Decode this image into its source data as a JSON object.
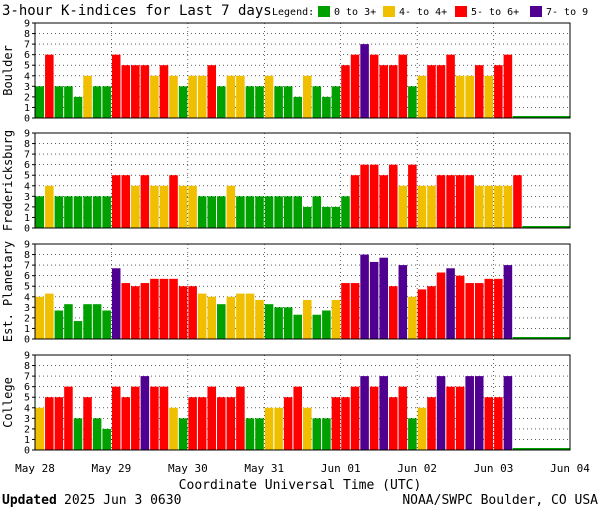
{
  "chart_data": {
    "type": "bar",
    "title": "3-hour K-indices for Last 7 days",
    "legend": {
      "label": "Legend:",
      "entries": [
        {
          "label": "0 to 3+",
          "color": "#00a000"
        },
        {
          "label": "4- to 4+",
          "color": "#f0c000"
        },
        {
          "label": "5- to 6+",
          "color": "#ff0000"
        },
        {
          "label": "7- to 9",
          "color": "#500090"
        }
      ]
    },
    "colors": {
      "quiet": "#00a000",
      "unsettled": "#f0c000",
      "storm": "#ff0000",
      "severe": "#500090",
      "nodata": "#00a000"
    },
    "ylim": [
      0,
      9
    ],
    "yticks": [
      "0",
      "1",
      "2",
      "3",
      "4",
      "5",
      "6",
      "7",
      "8",
      "9"
    ],
    "xticks": [
      "May 28",
      "May 29",
      "May 30",
      "May 31",
      "Jun 01",
      "Jun 02",
      "Jun 03",
      "Jun 04"
    ],
    "xlabel": "Coordinate Universal Time (UTC)",
    "bars_per_day": 8,
    "series": [
      {
        "name": "Boulder",
        "values": [
          3,
          6,
          3,
          3,
          2,
          4,
          3,
          3,
          6,
          5,
          5,
          5,
          4,
          5,
          4,
          3,
          4,
          4,
          5,
          3,
          4,
          4,
          3,
          3,
          4,
          3,
          3,
          2,
          4,
          3,
          2,
          3,
          5,
          6,
          7,
          6,
          5,
          5,
          6,
          3,
          4,
          5,
          5,
          6,
          4,
          4,
          5,
          4,
          5,
          6
        ]
      },
      {
        "name": "Fredericksburg",
        "values": [
          3,
          4,
          3,
          3,
          3,
          3,
          3,
          3,
          5,
          5,
          4,
          5,
          4,
          4,
          5,
          4,
          4,
          3,
          3,
          3,
          4,
          3,
          3,
          3,
          3,
          3,
          3,
          3,
          2,
          3,
          2,
          2,
          3,
          5,
          6,
          6,
          5,
          6,
          4,
          6,
          4,
          4,
          5,
          5,
          5,
          5,
          4,
          4,
          4,
          4,
          5
        ]
      },
      {
        "name": "Est. Planetary",
        "values": [
          4.0,
          4.3,
          2.7,
          3.3,
          1.7,
          3.3,
          3.3,
          2.7,
          6.7,
          5.3,
          5.0,
          5.3,
          5.7,
          5.7,
          5.7,
          5.0,
          5.0,
          4.3,
          4.0,
          3.3,
          4.0,
          4.3,
          4.3,
          3.7,
          3.3,
          3.0,
          3.0,
          2.3,
          3.7,
          2.3,
          2.7,
          3.7,
          5.3,
          5.3,
          8.0,
          7.3,
          7.7,
          5.0,
          7.0,
          4.0,
          4.7,
          5.0,
          6.3,
          6.7,
          6.0,
          5.3,
          5.3,
          5.7,
          5.7,
          7.0
        ]
      },
      {
        "name": "College",
        "values": [
          4,
          5,
          5,
          6,
          3,
          5,
          3,
          2,
          6,
          5,
          6,
          7,
          6,
          6,
          4,
          3,
          5,
          5,
          6,
          5,
          5,
          6,
          3,
          3,
          4,
          4,
          5,
          6,
          4,
          3,
          3,
          5,
          5,
          6,
          7,
          6,
          7,
          5,
          6,
          3,
          4,
          5,
          7,
          6,
          6,
          7,
          7,
          5,
          5,
          7
        ]
      }
    ]
  },
  "footer": {
    "updated_label": "Updated",
    "updated_value": "2025 Jun  3 0630",
    "credit": "NOAA/SWPC Boulder, CO USA"
  }
}
